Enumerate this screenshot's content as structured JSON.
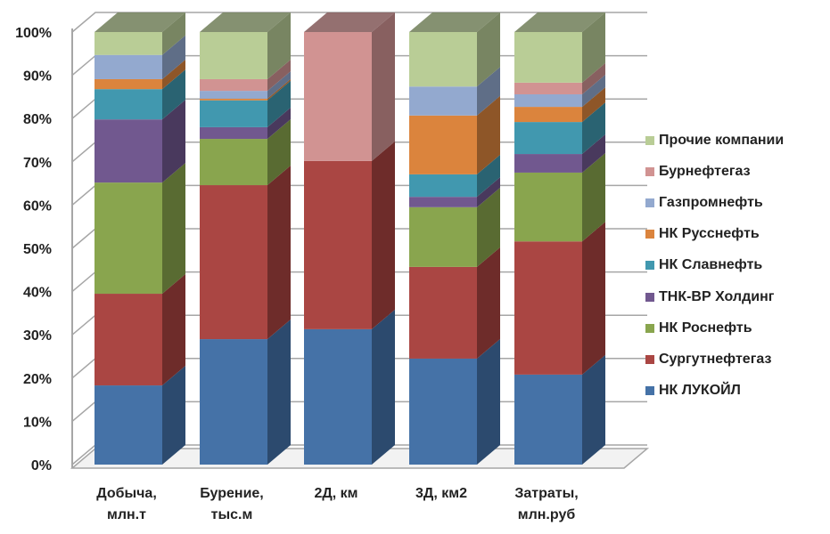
{
  "chart_data": {
    "type": "bar",
    "stacked": "percent",
    "three_d": true,
    "title": "",
    "xlabel": "",
    "ylabel": "",
    "ylim": [
      0,
      100
    ],
    "yticks": [
      "0%",
      "10%",
      "20%",
      "30%",
      "40%",
      "50%",
      "60%",
      "70%",
      "80%",
      "90%",
      "100%"
    ],
    "grid": true,
    "legend_position": "right",
    "categories": [
      [
        "Добыча,",
        "млн.т"
      ],
      [
        "Бурение,",
        "тыс.м"
      ],
      [
        "2Д, км"
      ],
      [
        "3Д, км2"
      ],
      [
        "Затраты,",
        "млн.руб"
      ]
    ],
    "series": [
      {
        "name": "НК ЛУКОЙЛ",
        "color": "#4572A7",
        "side": "#2C4A6E",
        "values": [
          18.3,
          29.0,
          31.3,
          24.5,
          20.8
        ]
      },
      {
        "name": "Сургутнефтегаз",
        "color": "#AA4643",
        "side": "#6E2C2A",
        "values": [
          21.2,
          35.6,
          38.9,
          21.2,
          30.8
        ]
      },
      {
        "name": "НК Роснефть",
        "color": "#89A54E",
        "side": "#596B32",
        "values": [
          25.7,
          10.7,
          0,
          13.8,
          15.9
        ]
      },
      {
        "name": "ТНК-ВР Холдинг",
        "color": "#71588F",
        "side": "#49395D",
        "values": [
          14.6,
          2.7,
          0,
          2.4,
          4.3
        ]
      },
      {
        "name": "НК Славнефть",
        "color": "#4198AF",
        "side": "#2A6372",
        "values": [
          7.0,
          6.2,
          0,
          5.2,
          7.4
        ]
      },
      {
        "name": "НК Русснефть",
        "color": "#DB843D",
        "side": "#8E5628",
        "values": [
          2.3,
          0.4,
          0,
          13.6,
          3.5
        ]
      },
      {
        "name": "Газпромнефть",
        "color": "#93A9CF",
        "side": "#5F6E87",
        "values": [
          5.6,
          1.8,
          0,
          6.7,
          2.9
        ]
      },
      {
        "name": "Бурнефтегаз",
        "color": "#D19392",
        "side": "#886060",
        "values": [
          0,
          2.7,
          29.8,
          0,
          2.7
        ]
      },
      {
        "name": "Прочие компании",
        "color": "#B9CD96",
        "side": "#788562",
        "values": [
          5.3,
          10.9,
          0,
          12.6,
          11.7
        ]
      }
    ]
  }
}
